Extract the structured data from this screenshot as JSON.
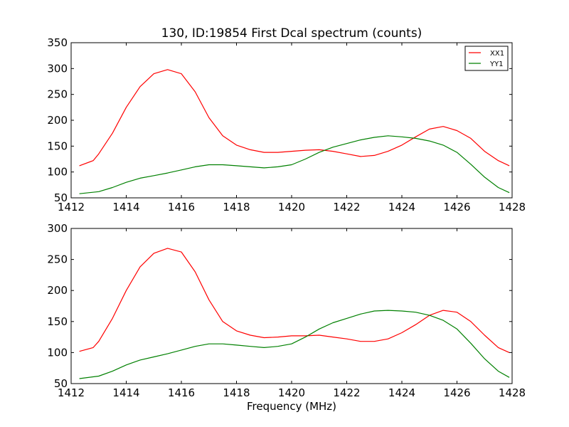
{
  "chart_data": [
    {
      "type": "line",
      "title": "130, ID:19854 First Dcal spectrum (counts)",
      "xlabel": "",
      "ylabel": "",
      "xlim": [
        1412,
        1428
      ],
      "ylim": [
        50,
        350
      ],
      "xticks": [
        1412,
        1414,
        1416,
        1418,
        1420,
        1422,
        1424,
        1426,
        1428
      ],
      "yticks": [
        50,
        100,
        150,
        200,
        250,
        300,
        350
      ],
      "legend": {
        "placement": "top-right",
        "entries": [
          "XX1",
          "YY1"
        ]
      },
      "grid": false,
      "series": [
        {
          "name": "XX1",
          "color": "#ff0000",
          "x": [
            1412.3,
            1412.8,
            1413.0,
            1413.5,
            1414.0,
            1414.5,
            1415.0,
            1415.5,
            1416.0,
            1416.5,
            1417.0,
            1417.5,
            1418.0,
            1418.5,
            1419.0,
            1419.5,
            1420.0,
            1420.5,
            1421.0,
            1421.5,
            1422.0,
            1422.5,
            1423.0,
            1423.5,
            1424.0,
            1424.5,
            1425.0,
            1425.5,
            1426.0,
            1426.5,
            1427.0,
            1427.5,
            1427.9
          ],
          "y": [
            112,
            122,
            135,
            175,
            225,
            265,
            290,
            298,
            290,
            255,
            205,
            170,
            152,
            143,
            138,
            138,
            140,
            142,
            143,
            140,
            135,
            130,
            132,
            140,
            152,
            168,
            183,
            188,
            180,
            165,
            140,
            122,
            112
          ]
        },
        {
          "name": "YY1",
          "color": "#008000",
          "x": [
            1412.3,
            1413.0,
            1413.5,
            1414.0,
            1414.5,
            1415.0,
            1415.5,
            1416.0,
            1416.5,
            1417.0,
            1417.5,
            1418.0,
            1418.5,
            1419.0,
            1419.5,
            1420.0,
            1420.5,
            1421.0,
            1421.5,
            1422.0,
            1422.5,
            1423.0,
            1423.5,
            1424.0,
            1424.5,
            1425.0,
            1425.5,
            1426.0,
            1426.5,
            1427.0,
            1427.5,
            1427.9
          ],
          "y": [
            58,
            62,
            70,
            80,
            88,
            93,
            98,
            104,
            110,
            114,
            114,
            112,
            110,
            108,
            110,
            114,
            125,
            138,
            148,
            155,
            162,
            167,
            170,
            168,
            165,
            160,
            152,
            138,
            115,
            90,
            70,
            60
          ]
        }
      ]
    },
    {
      "type": "line",
      "title": "",
      "xlabel": "Frequency (MHz)",
      "ylabel": "",
      "xlim": [
        1412,
        1428
      ],
      "ylim": [
        50,
        300
      ],
      "xticks": [
        1412,
        1414,
        1416,
        1418,
        1420,
        1422,
        1424,
        1426,
        1428
      ],
      "yticks": [
        50,
        100,
        150,
        200,
        250,
        300
      ],
      "grid": false,
      "series": [
        {
          "color": "#ff0000",
          "x": [
            1412.3,
            1412.8,
            1413.0,
            1413.5,
            1414.0,
            1414.5,
            1415.0,
            1415.5,
            1416.0,
            1416.5,
            1417.0,
            1417.5,
            1418.0,
            1418.5,
            1419.0,
            1419.5,
            1420.0,
            1420.5,
            1421.0,
            1421.5,
            1422.0,
            1422.5,
            1423.0,
            1423.5,
            1424.0,
            1424.5,
            1425.0,
            1425.5,
            1426.0,
            1426.5,
            1427.0,
            1427.5,
            1427.9
          ],
          "y": [
            102,
            108,
            118,
            155,
            200,
            238,
            260,
            268,
            262,
            230,
            185,
            150,
            135,
            128,
            124,
            125,
            127,
            127,
            128,
            125,
            122,
            118,
            118,
            122,
            132,
            145,
            160,
            168,
            165,
            150,
            128,
            108,
            100
          ]
        },
        {
          "color": "#008000",
          "x": [
            1412.3,
            1413.0,
            1413.5,
            1414.0,
            1414.5,
            1415.0,
            1415.5,
            1416.0,
            1416.5,
            1417.0,
            1417.5,
            1418.0,
            1418.5,
            1419.0,
            1419.5,
            1420.0,
            1420.5,
            1421.0,
            1421.5,
            1422.0,
            1422.5,
            1423.0,
            1423.5,
            1424.0,
            1424.5,
            1425.0,
            1425.5,
            1426.0,
            1426.5,
            1427.0,
            1427.5,
            1427.9
          ],
          "y": [
            58,
            62,
            70,
            80,
            88,
            93,
            98,
            104,
            110,
            114,
            114,
            112,
            110,
            108,
            110,
            114,
            125,
            138,
            148,
            155,
            162,
            167,
            168,
            167,
            165,
            160,
            152,
            138,
            115,
            90,
            70,
            60
          ]
        }
      ]
    }
  ]
}
